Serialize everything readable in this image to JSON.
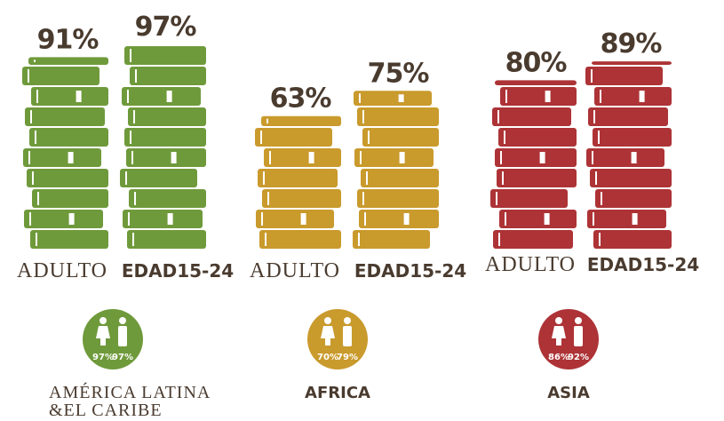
{
  "chart_data": [
    {
      "type": "book-stack",
      "categories": [
        "AMÉRICA LATINA &EL CARIBE",
        "AFRICA",
        "ASIA"
      ],
      "colors": [
        "#6f9a3b",
        "#c99a2c",
        "#ad3336"
      ],
      "series": [
        {
          "name": "ADULTO",
          "values": [
            91,
            63,
            80
          ],
          "value_labels": [
            "91%",
            "63%",
            "80%"
          ]
        },
        {
          "name": "EDAD15-24",
          "values": [
            97,
            75,
            89
          ],
          "value_labels": [
            "97%",
            "75%",
            "89%"
          ]
        }
      ]
    },
    {
      "type": "icon-circle",
      "categories": [
        "AMÉRICA LATINA &EL CARIBE",
        "AFRICA",
        "ASIA"
      ],
      "colors": [
        "#6f9a3b",
        "#c99a2c",
        "#ad3336"
      ],
      "series": [
        {
          "values": [
            97,
            70,
            86
          ],
          "value_labels": [
            "97%",
            "70%",
            "86%"
          ]
        },
        {
          "values": [
            97,
            79,
            92
          ],
          "value_labels": [
            "97%",
            "79%",
            "92%"
          ]
        }
      ]
    }
  ]
}
